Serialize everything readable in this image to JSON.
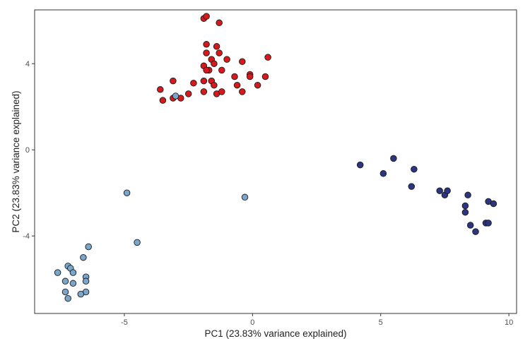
{
  "chart_data": {
    "type": "scatter",
    "title": "",
    "xlabel": "PC1 (23.83% variance explained)",
    "ylabel": "PC2 (23.83% variance explained)",
    "xlim": [
      -8.5,
      10.3
    ],
    "ylim": [
      -7.6,
      6.5
    ],
    "x_ticks": [
      -5,
      0,
      5,
      10
    ],
    "y_ticks": [
      -4,
      0,
      4
    ],
    "x_tick_labels": [
      "-5",
      "0",
      "5",
      "10"
    ],
    "y_tick_labels": [
      "-4",
      "0",
      "4"
    ],
    "grid": false,
    "legend": "none",
    "series": [
      {
        "color": "#d7191c",
        "points": [
          [
            -1.9,
            6.1
          ],
          [
            -1.8,
            6.2
          ],
          [
            -1.3,
            5.9
          ],
          [
            -1.8,
            4.9
          ],
          [
            -1.4,
            4.8
          ],
          [
            -1.8,
            4.5
          ],
          [
            -1.3,
            4.5
          ],
          [
            -1.6,
            4.2
          ],
          [
            -1.5,
            4.0
          ],
          [
            -1.0,
            4.2
          ],
          [
            -0.4,
            4.1
          ],
          [
            0.6,
            4.3
          ],
          [
            -1.9,
            3.9
          ],
          [
            -1.7,
            3.7
          ],
          [
            -1.8,
            3.7
          ],
          [
            -1.2,
            3.7
          ],
          [
            -0.7,
            3.4
          ],
          [
            -0.1,
            3.5
          ],
          [
            -0.1,
            3.4
          ],
          [
            0.5,
            3.4
          ],
          [
            -3.1,
            3.2
          ],
          [
            -2.3,
            3.1
          ],
          [
            -1.9,
            3.2
          ],
          [
            -1.6,
            3.2
          ],
          [
            -0.6,
            3.0
          ],
          [
            -1.5,
            3.0
          ],
          [
            0.2,
            3.0
          ],
          [
            -3.6,
            2.8
          ],
          [
            -1.9,
            2.7
          ],
          [
            -2.5,
            2.6
          ],
          [
            -1.4,
            2.6
          ],
          [
            -1.2,
            2.7
          ],
          [
            -0.4,
            2.7
          ],
          [
            -3.5,
            2.3
          ],
          [
            -3.1,
            2.4
          ],
          [
            -2.8,
            2.4
          ]
        ]
      },
      {
        "color": "#2c3580",
        "points": [
          [
            4.2,
            -0.7
          ],
          [
            5.1,
            -1.1
          ],
          [
            5.5,
            -0.4
          ],
          [
            6.3,
            -0.9
          ],
          [
            6.2,
            -1.7
          ],
          [
            7.3,
            -1.9
          ],
          [
            7.5,
            -2.1
          ],
          [
            7.6,
            -1.9
          ],
          [
            8.4,
            -2.1
          ],
          [
            8.3,
            -2.6
          ],
          [
            8.3,
            -2.9
          ],
          [
            8.5,
            -3.5
          ],
          [
            8.7,
            -3.8
          ],
          [
            9.1,
            -3.4
          ],
          [
            9.2,
            -3.4
          ],
          [
            9.2,
            -2.4
          ],
          [
            9.4,
            -2.5
          ]
        ]
      },
      {
        "color": "#7aa6cc",
        "points": [
          [
            -3.0,
            2.5
          ],
          [
            -4.9,
            -2.0
          ],
          [
            -4.5,
            -4.3
          ],
          [
            -0.3,
            -2.2
          ],
          [
            -6.4,
            -4.5
          ],
          [
            -6.6,
            -5.0
          ],
          [
            -7.6,
            -5.7
          ],
          [
            -7.2,
            -5.4
          ],
          [
            -7.1,
            -5.5
          ],
          [
            -7.0,
            -5.7
          ],
          [
            -6.5,
            -5.9
          ],
          [
            -7.3,
            -6.1
          ],
          [
            -7.0,
            -6.2
          ],
          [
            -6.5,
            -6.1
          ],
          [
            -7.3,
            -6.6
          ],
          [
            -6.5,
            -6.6
          ],
          [
            -6.7,
            -6.7
          ],
          [
            -7.2,
            -6.9
          ]
        ]
      }
    ]
  }
}
